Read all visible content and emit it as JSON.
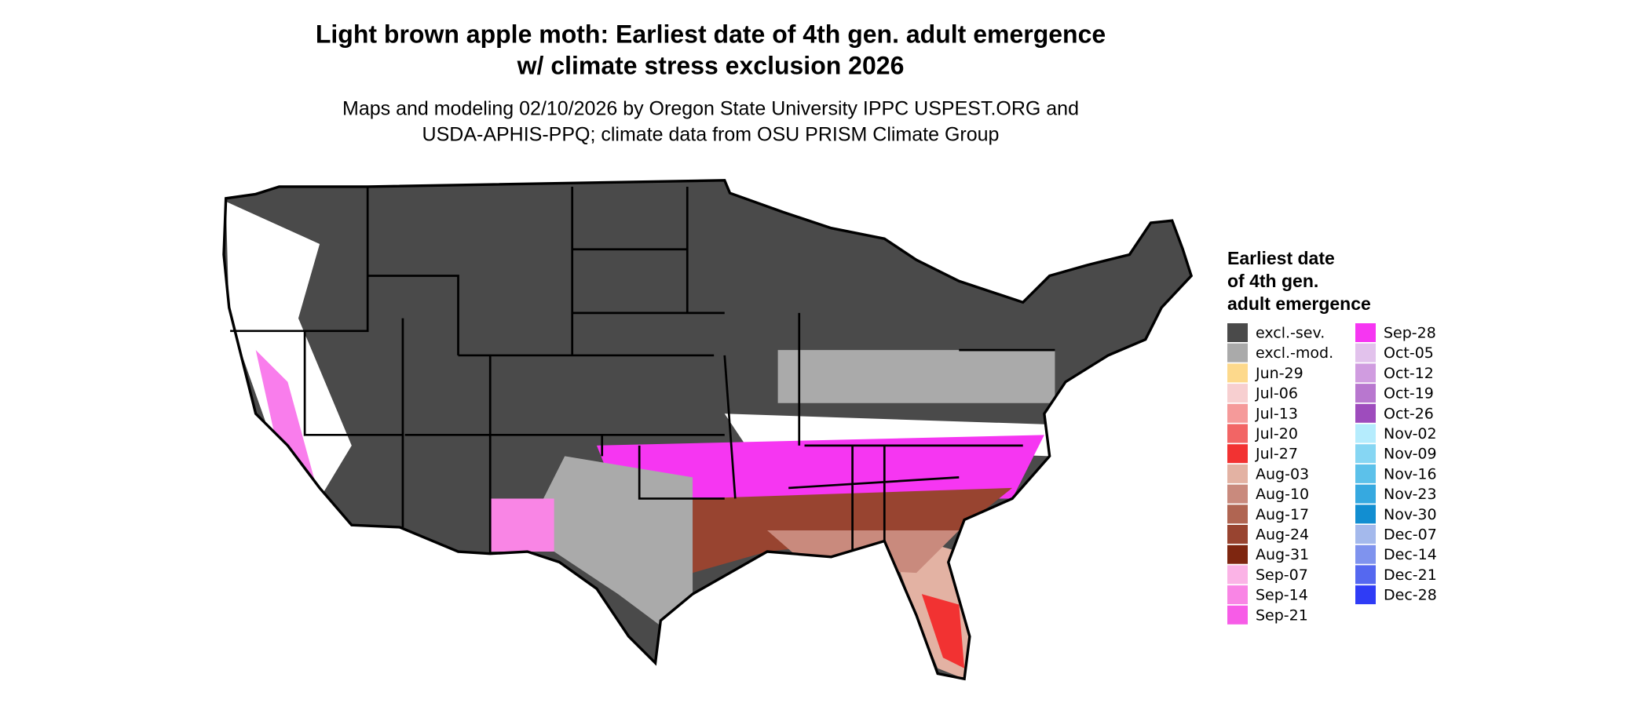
{
  "header": {
    "title": [
      "Light brown apple moth: Earliest date of 4th gen. adult emergence",
      "w/ climate stress exclusion 2026"
    ],
    "subtitle": [
      "Maps and modeling 02/10/2026 by Oregon State University IPPC USPEST.ORG and",
      "USDA-APHIS-PPQ; climate data from OSU PRISM Climate Group"
    ]
  },
  "legend": {
    "title": [
      "Earliest date",
      "of 4th gen.",
      "adult emergence"
    ],
    "items": [
      {
        "label": "excl.-sev.",
        "color": "#4a4a4a"
      },
      {
        "label": "excl.-mod.",
        "color": "#aaaaaa"
      },
      {
        "label": "Jun-29",
        "color": "#fdd98c"
      },
      {
        "label": "Jul-06",
        "color": "#f7cfd0"
      },
      {
        "label": "Jul-13",
        "color": "#f59a9a"
      },
      {
        "label": "Jul-20",
        "color": "#f26565"
      },
      {
        "label": "Jul-27",
        "color": "#f23232"
      },
      {
        "label": "Aug-03",
        "color": "#e3b2a3"
      },
      {
        "label": "Aug-10",
        "color": "#c98a7d"
      },
      {
        "label": "Aug-17",
        "color": "#b06552"
      },
      {
        "label": "Aug-24",
        "color": "#984430"
      },
      {
        "label": "Aug-31",
        "color": "#7e2610"
      },
      {
        "label": "Sep-07",
        "color": "#fbb3e6"
      },
      {
        "label": "Sep-14",
        "color": "#f985e5"
      },
      {
        "label": "Sep-21",
        "color": "#f75ce7"
      },
      {
        "label": "Sep-28",
        "color": "#f636f2"
      },
      {
        "label": "Oct-05",
        "color": "#e2c2ec"
      },
      {
        "label": "Oct-12",
        "color": "#d09ce0"
      },
      {
        "label": "Oct-19",
        "color": "#b877cf"
      },
      {
        "label": "Oct-26",
        "color": "#9e4cbd"
      },
      {
        "label": "Nov-02",
        "color": "#b5ecfd"
      },
      {
        "label": "Nov-09",
        "color": "#86d6f3"
      },
      {
        "label": "Nov-16",
        "color": "#5cc1ea"
      },
      {
        "label": "Nov-23",
        "color": "#36a9e0"
      },
      {
        "label": "Nov-30",
        "color": "#128ed1"
      },
      {
        "label": "Dec-07",
        "color": "#a4b9ec"
      },
      {
        "label": "Dec-14",
        "color": "#7f93ee"
      },
      {
        "label": "Dec-21",
        "color": "#5568f0"
      },
      {
        "label": "Dec-28",
        "color": "#2f3cf6"
      }
    ]
  }
}
